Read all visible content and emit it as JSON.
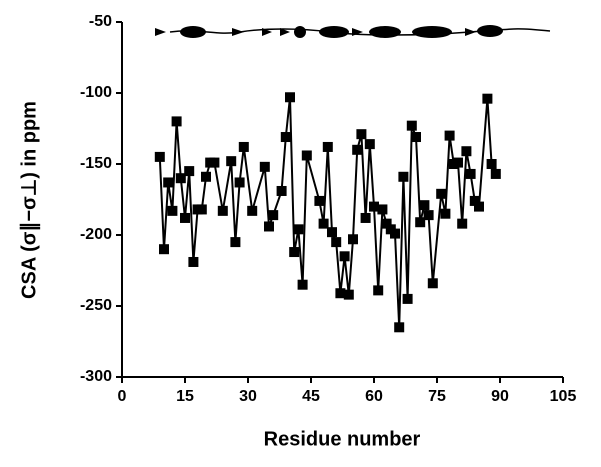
{
  "chart_data": {
    "type": "line",
    "xlabel": "Residue number",
    "ylabel": "CSA (σ∥−σ⊥) in ppm",
    "color": "#000000",
    "x": [
      9,
      10,
      11,
      12,
      13,
      14,
      15,
      16,
      17,
      18,
      19,
      20,
      21,
      22,
      24,
      26,
      27,
      28,
      29,
      31,
      34,
      35,
      36,
      38,
      39,
      40,
      41,
      42,
      43,
      44,
      47,
      48,
      49,
      50,
      51,
      52,
      53,
      54,
      55,
      56,
      57,
      58,
      59,
      60,
      61,
      62,
      63,
      64,
      65,
      66,
      67,
      68,
      69,
      70,
      71,
      72,
      73,
      74,
      76,
      77,
      78,
      79,
      80,
      81,
      82,
      83,
      84,
      85,
      87,
      88,
      89
    ],
    "values": [
      -145,
      -210,
      -163,
      -183,
      -120,
      -160,
      -188,
      -155,
      -219,
      -182,
      -182,
      -159,
      -149,
      -149,
      -183,
      -148,
      -205,
      -163,
      -138,
      -183,
      -152,
      -194,
      -186,
      -169,
      -131,
      -103,
      -212,
      -196,
      -235,
      -144,
      -176,
      -192,
      -138,
      -198,
      -205,
      -241,
      -215,
      -242,
      -203,
      -140,
      -129,
      -188,
      -136,
      -180,
      -239,
      -182,
      -192,
      -196,
      -199,
      -265,
      -159,
      -245,
      -123,
      -131,
      -191,
      -179,
      -186,
      -234,
      -171,
      -185,
      -130,
      -150,
      -149,
      -192,
      -141,
      -157,
      -176,
      -180,
      -104,
      -150,
      -157
    ],
    "xlim": [
      0,
      105
    ],
    "xticks": [
      0,
      15,
      30,
      45,
      60,
      75,
      90,
      105
    ],
    "ylim": [
      -300,
      -50
    ],
    "yticks": [
      -300,
      -250,
      -200,
      -150,
      -100,
      -50
    ]
  }
}
